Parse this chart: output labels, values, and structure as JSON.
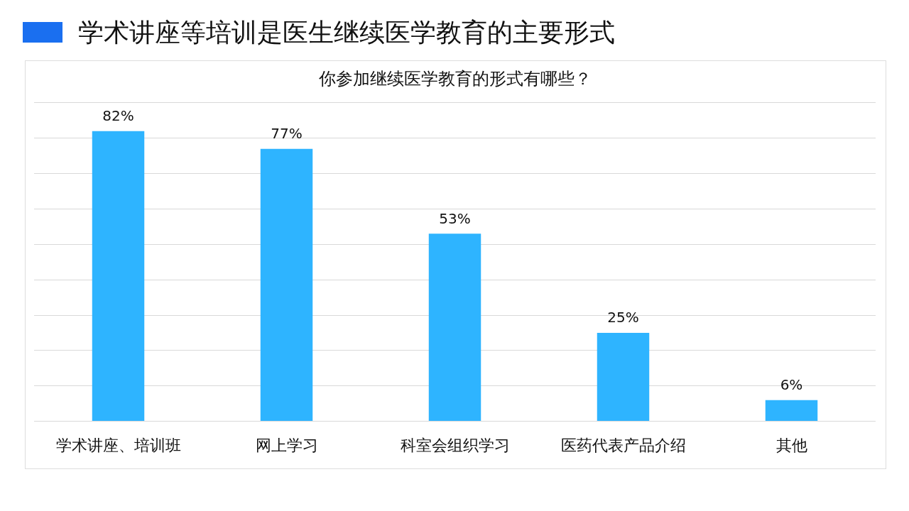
{
  "chart_data": {
    "type": "bar",
    "title": "学术讲座等培训是医生继续医学教育的主要形式",
    "subtitle": "你参加继续医学教育的形式有哪些？",
    "categories": [
      "学术讲座、培训班",
      "网上学习",
      "科室会组织学习",
      "医药代表产品介绍",
      "其他"
    ],
    "values": [
      82,
      77,
      53,
      25,
      6
    ],
    "value_labels": [
      "82%",
      "77%",
      "53%",
      "25%",
      "6%"
    ],
    "color": "#2eb4ff",
    "ylim": [
      0,
      90
    ],
    "yticks": [
      {
        "value": 0,
        "label": null
      },
      {
        "value": 10,
        "label": null
      },
      {
        "value": 20,
        "label": null
      },
      {
        "value": 30,
        "label": null
      },
      {
        "value": 40,
        "label": null
      },
      {
        "value": 50,
        "label": null
      },
      {
        "value": 60,
        "label": null
      },
      {
        "value": 70,
        "label": null
      },
      {
        "value": 80,
        "label": null
      },
      {
        "value": 90,
        "label": null
      }
    ],
    "grid": "y",
    "tick_labels": "x"
  }
}
